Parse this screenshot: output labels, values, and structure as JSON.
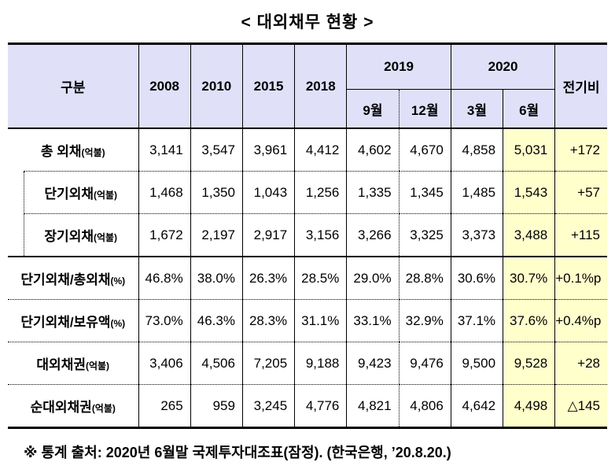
{
  "title": "< 대외채무 현황 >",
  "table": {
    "header": {
      "gubun": "구분",
      "years": [
        "2008",
        "2010",
        "2015",
        "2018"
      ],
      "groups": [
        {
          "label": "2019",
          "months": [
            "9월",
            "12월"
          ]
        },
        {
          "label": "2020",
          "months": [
            "3월",
            "6월"
          ]
        }
      ],
      "last_col": "전기비"
    },
    "rows": [
      {
        "label": "총 외채",
        "suffix": "(억불)",
        "values": [
          "3,141",
          "3,547",
          "3,961",
          "4,412",
          "4,602",
          "4,670",
          "4,858",
          "5,031",
          "+172"
        ]
      },
      {
        "label": "단기외채",
        "suffix": "(억불)",
        "values": [
          "1,468",
          "1,350",
          "1,043",
          "1,256",
          "1,335",
          "1,345",
          "1,485",
          "1,543",
          "+57"
        ]
      },
      {
        "label": "장기외채",
        "suffix": "(억불)",
        "values": [
          "1,672",
          "2,197",
          "2,917",
          "3,156",
          "3,266",
          "3,325",
          "3,373",
          "3,488",
          "+115"
        ]
      },
      {
        "label": "단기외채/총외채",
        "suffix": "(%)",
        "values": [
          "46.8%",
          "38.0%",
          "26.3%",
          "28.5%",
          "29.0%",
          "28.8%",
          "30.6%",
          "30.7%",
          "+0.1%p"
        ]
      },
      {
        "label": "단기외채/보유액",
        "suffix": "(%)",
        "values": [
          "73.0%",
          "46.3%",
          "28.3%",
          "31.1%",
          "33.1%",
          "32.9%",
          "37.1%",
          "37.6%",
          "+0.4%p"
        ]
      },
      {
        "label": "대외채권",
        "suffix": "(억불)",
        "values": [
          "3,406",
          "4,506",
          "7,205",
          "9,188",
          "9,423",
          "9,476",
          "9,500",
          "9,528",
          "+28"
        ]
      },
      {
        "label": "순대외채권",
        "suffix": "(억불)",
        "values": [
          "265",
          "959",
          "3,245",
          "4,776",
          "4,821",
          "4,806",
          "4,642",
          "4,498",
          "△145"
        ]
      }
    ]
  },
  "footnote": "※ 통계 출처: 2020년 6월말 국제투자대조표(잠정). (한국은행, ’20.8.20.)",
  "colors": {
    "header_bg": "#E0E0F8",
    "highlight_bg": "#FFFFCC"
  }
}
